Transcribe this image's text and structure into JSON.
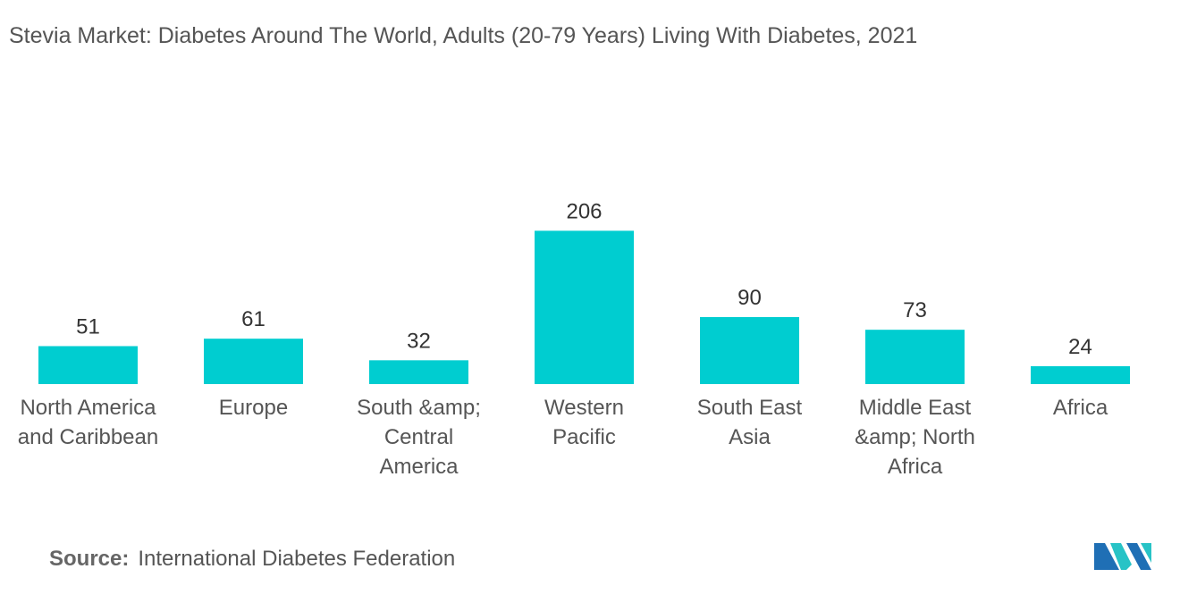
{
  "chart_data": {
    "type": "bar",
    "title": "Stevia Market: Diabetes Around The World, Adults (20-79 Years) Living With Diabetes, 2021",
    "categories": [
      "North America and Caribbean",
      "Europe",
      "South &amp; Central America",
      "Western Pacific",
      "South East Asia",
      "Middle East &amp; North Africa",
      "Africa"
    ],
    "values": [
      51,
      61,
      32,
      206,
      90,
      73,
      24
    ],
    "xlabel": "",
    "ylabel": "",
    "grid": false,
    "bar_color": "#00CDD0"
  },
  "source": {
    "label": "Source:",
    "text": "International Diabetes Federation"
  },
  "logo": {
    "icon": "mordor-intelligence-logo-icon",
    "colors": [
      "#1F6FB5",
      "#27C3C6"
    ]
  }
}
